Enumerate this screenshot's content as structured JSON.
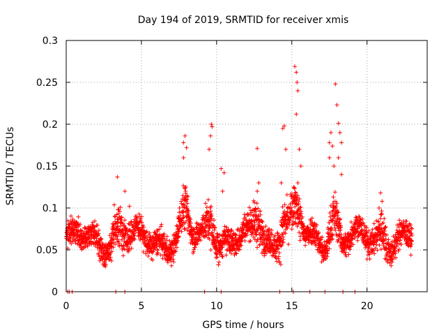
{
  "chart_data": {
    "type": "scatter",
    "title": "Day 194 of 2019, SRMTID for receiver xmis",
    "xlabel": "GPS time / hours",
    "ylabel": "SRMTID / TECUs",
    "xlim": [
      0,
      24
    ],
    "ylim": [
      0,
      0.3
    ],
    "grid": true,
    "x_ticks": [
      0,
      5,
      10,
      15,
      20
    ],
    "x_tick_labels": [
      "0",
      "5",
      "10",
      "15",
      "20"
    ],
    "y_ticks": [
      0,
      0.05,
      0.1,
      0.15,
      0.2,
      0.25,
      0.3
    ],
    "y_tick_labels": [
      "0",
      "0.05",
      "0.1",
      "0.15",
      "0.2",
      "0.25",
      "0.3"
    ],
    "marker": "+",
    "marker_color": "#ff0000",
    "grid_color": "#a0a0a0",
    "series": [
      {
        "name": "SRMTID",
        "x_range": [
          0,
          23
        ],
        "baseline_mean": 0.062,
        "points": [
          [
            3.4,
            0.137
          ],
          [
            3.9,
            0.12
          ],
          [
            4.2,
            0.102
          ],
          [
            7.8,
            0.178
          ],
          [
            7.9,
            0.186
          ],
          [
            8.0,
            0.172
          ],
          [
            7.8,
            0.16
          ],
          [
            9.5,
            0.17
          ],
          [
            9.6,
            0.186
          ],
          [
            9.7,
            0.197
          ],
          [
            9.65,
            0.2
          ],
          [
            10.3,
            0.147
          ],
          [
            10.5,
            0.142
          ],
          [
            10.4,
            0.12
          ],
          [
            12.7,
            0.171
          ],
          [
            12.8,
            0.13
          ],
          [
            12.7,
            0.12
          ],
          [
            14.4,
            0.195
          ],
          [
            14.5,
            0.198
          ],
          [
            14.6,
            0.17
          ],
          [
            14.3,
            0.13
          ],
          [
            15.2,
            0.269
          ],
          [
            15.3,
            0.262
          ],
          [
            15.35,
            0.25
          ],
          [
            15.4,
            0.24
          ],
          [
            15.3,
            0.212
          ],
          [
            15.5,
            0.17
          ],
          [
            15.6,
            0.15
          ],
          [
            15.4,
            0.13
          ],
          [
            17.5,
            0.178
          ],
          [
            17.6,
            0.19
          ],
          [
            17.7,
            0.174
          ],
          [
            17.5,
            0.16
          ],
          [
            17.8,
            0.15
          ],
          [
            17.9,
            0.248
          ],
          [
            18.0,
            0.223
          ],
          [
            18.1,
            0.201
          ],
          [
            18.2,
            0.19
          ],
          [
            18.3,
            0.178
          ],
          [
            18.1,
            0.16
          ],
          [
            18.3,
            0.14
          ],
          [
            20.9,
            0.118
          ],
          [
            21.0,
            0.108
          ],
          [
            20.8,
            0.1
          ],
          [
            0.1,
            0
          ],
          [
            0.2,
            0
          ],
          [
            0.4,
            0
          ],
          [
            3.3,
            0
          ],
          [
            3.9,
            0
          ],
          [
            9.2,
            0
          ],
          [
            10.3,
            0
          ],
          [
            14.2,
            0
          ],
          [
            15.1,
            0
          ],
          [
            16.2,
            0
          ],
          [
            17.2,
            0
          ],
          [
            18.4,
            0
          ],
          [
            19.2,
            0
          ]
        ]
      }
    ]
  }
}
